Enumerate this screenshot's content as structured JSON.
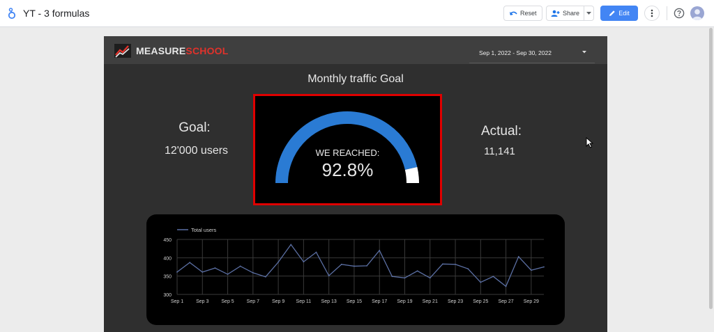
{
  "app": {
    "doc_title": "YT - 3 formulas",
    "toolbar": {
      "reset_label": "Reset",
      "share_label": "Share",
      "edit_label": "Edit"
    },
    "colors": {
      "edit_button": "#4285f4",
      "gauge_highlight_border": "#e00000"
    }
  },
  "report": {
    "brand": {
      "part1": "MEASURE",
      "part2": "SCHOOL",
      "colors": [
        "#e8e8e8",
        "#e0322b"
      ]
    },
    "date_range": "Sep 1, 2022 - Sep 30, 2022",
    "title": "Monthly traffic Goal",
    "goal": {
      "label": "Goal:",
      "value": "12'000 users"
    },
    "actual": {
      "label": "Actual:",
      "value": "11,141"
    },
    "gauge": {
      "caption": "WE REACHED:",
      "value_text": "92.8%",
      "fraction": 0.928,
      "fill_color": "#2a7bd4",
      "remainder_color": "#ffffff"
    }
  },
  "chart_data": {
    "type": "line",
    "title": "",
    "xlabel": "",
    "ylabel": "",
    "legend": "top-left",
    "grid": true,
    "ylim": [
      300,
      450
    ],
    "yticks": [
      300,
      350,
      400,
      450
    ],
    "categories": [
      "Sep 1",
      "Sep 2",
      "Sep 3",
      "Sep 4",
      "Sep 5",
      "Sep 6",
      "Sep 7",
      "Sep 8",
      "Sep 9",
      "Sep 10",
      "Sep 11",
      "Sep 12",
      "Sep 13",
      "Sep 14",
      "Sep 15",
      "Sep 16",
      "Sep 17",
      "Sep 18",
      "Sep 19",
      "Sep 20",
      "Sep 21",
      "Sep 22",
      "Sep 23",
      "Sep 24",
      "Sep 25",
      "Sep 26",
      "Sep 27",
      "Sep 28",
      "Sep 29",
      "Sep 30"
    ],
    "tick_labels": [
      "Sep 1",
      "Sep 3",
      "Sep 5",
      "Sep 7",
      "Sep 9",
      "Sep 11",
      "Sep 13",
      "Sep 15",
      "Sep 17",
      "Sep 19",
      "Sep 21",
      "Sep 23",
      "Sep 25",
      "Sep 27",
      "Sep 29"
    ],
    "series": [
      {
        "name": "Total users",
        "color": "#5b6fa3",
        "values": [
          361,
          387,
          361,
          372,
          355,
          377,
          359,
          348,
          388,
          436,
          389,
          415,
          351,
          382,
          377,
          378,
          420,
          349,
          345,
          364,
          345,
          383,
          382,
          370,
          333,
          349,
          322,
          403,
          366,
          375
        ]
      }
    ]
  }
}
